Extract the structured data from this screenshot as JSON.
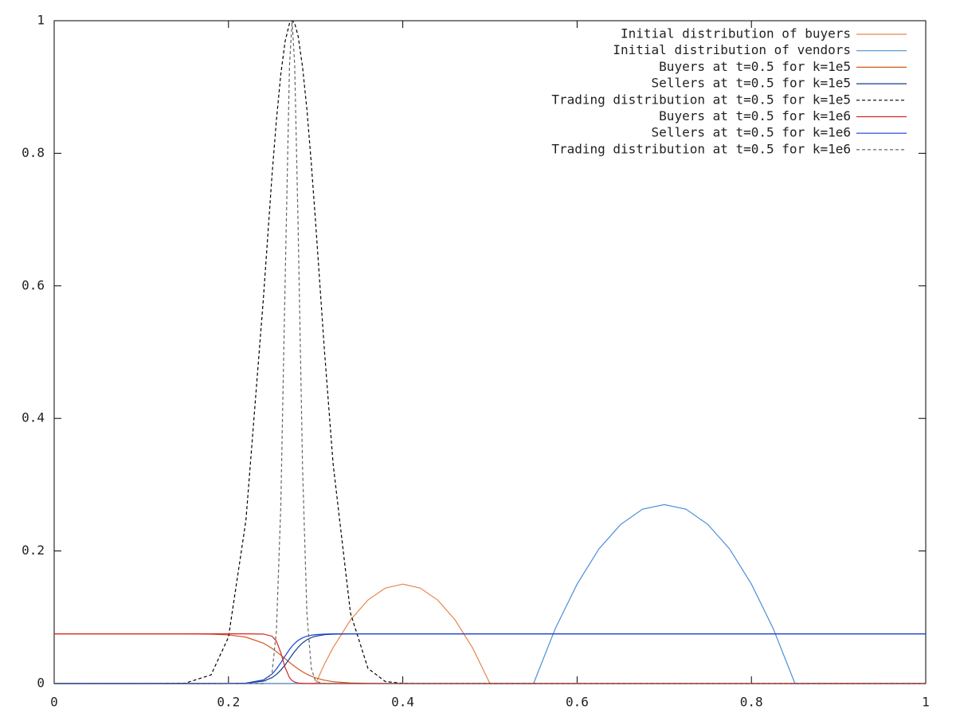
{
  "chart_data": {
    "type": "line",
    "x": [
      0,
      0.1,
      0.15,
      0.18,
      0.2,
      0.22,
      0.24,
      0.25,
      0.255,
      0.26,
      0.265,
      0.27,
      0.273,
      0.276,
      0.28,
      0.285,
      0.29,
      0.295,
      0.3,
      0.31,
      0.32,
      0.34,
      0.36,
      0.38,
      0.4,
      0.42,
      0.44,
      0.46,
      0.48,
      0.5,
      0.55,
      0.575,
      0.6,
      0.625,
      0.65,
      0.675,
      0.7,
      0.725,
      0.75,
      0.775,
      0.8,
      0.825,
      0.85,
      0.9,
      1
    ],
    "series": [
      {
        "name": "Initial distribution of buyers",
        "color": "#e8864c",
        "dashed": false,
        "values": [
          0,
          0,
          0,
          0,
          0,
          0,
          0,
          0,
          0,
          0,
          0,
          0,
          0,
          0,
          0,
          0,
          0,
          0,
          0,
          0.029,
          0.054,
          0.096,
          0.126,
          0.144,
          0.15,
          0.144,
          0.126,
          0.096,
          0.054,
          0,
          0,
          0,
          0,
          0,
          0,
          0,
          0,
          0,
          0,
          0,
          0,
          0,
          0,
          0,
          0
        ]
      },
      {
        "name": "Initial distribution of vendors",
        "color": "#4a8fd8",
        "dashed": false,
        "values": [
          0,
          0,
          0,
          0,
          0,
          0,
          0,
          0,
          0,
          0,
          0,
          0,
          0,
          0,
          0,
          0,
          0,
          0,
          0,
          0,
          0,
          0,
          0,
          0,
          0,
          0,
          0,
          0,
          0,
          0,
          0,
          0.083,
          0.15,
          0.203,
          0.24,
          0.263,
          0.27,
          0.263,
          0.24,
          0.203,
          0.15,
          0.083,
          0,
          0,
          0
        ]
      },
      {
        "name": "Buyers at t=0.5 for k=1e5",
        "color": "#d2581c",
        "dashed": false,
        "values": [
          0.075,
          0.075,
          0.075,
          0.0745,
          0.0734,
          0.07,
          0.061,
          0.053,
          0.048,
          0.043,
          0.0375,
          0.032,
          0.0288,
          0.0258,
          0.022,
          0.0177,
          0.014,
          0.011,
          0.0085,
          0.005,
          0.0028,
          0.0009,
          0.0003,
          0.0001,
          0,
          0,
          0,
          0,
          0,
          0,
          0,
          0,
          0,
          0,
          0,
          0,
          0,
          0,
          0,
          0,
          0,
          0,
          0,
          0,
          0
        ]
      },
      {
        "name": "Sellers at t=0.5 for k=1e5",
        "color": "#0f3f8c",
        "dashed": false,
        "values": [
          0,
          0,
          0,
          0,
          0.0001,
          0.0005,
          0.0036,
          0.0089,
          0.0137,
          0.0202,
          0.0283,
          0.0375,
          0.0431,
          0.0484,
          0.0548,
          0.0613,
          0.0661,
          0.0693,
          0.0714,
          0.0737,
          0.0745,
          0.075,
          0.075,
          0.075,
          0.075,
          0.075,
          0.075,
          0.075,
          0.075,
          0.075,
          0.075,
          0.075,
          0.075,
          0.075,
          0.075,
          0.075,
          0.075,
          0.075,
          0.075,
          0.075,
          0.075,
          0.075,
          0.075,
          0.075,
          0.075
        ]
      },
      {
        "name": "Trading distribution at t=0.5 for k=1e5",
        "color": "#000000",
        "dashed": true,
        "values": [
          0,
          0,
          0.0005,
          0.013,
          0.07,
          0.246,
          0.58,
          0.768,
          0.85,
          0.919,
          0.969,
          0.996,
          1,
          0.996,
          0.976,
          0.93,
          0.866,
          0.785,
          0.695,
          0.504,
          0.332,
          0.106,
          0.023,
          0.003,
          0.0003,
          0,
          0,
          0,
          0,
          0,
          0,
          0,
          0,
          0,
          0,
          0,
          0,
          0,
          0,
          0,
          0,
          0,
          0,
          0,
          0
        ]
      },
      {
        "name": "Buyers at t=0.5 for k=1e6",
        "color": "#d42424",
        "dashed": false,
        "values": [
          0.075,
          0.075,
          0.075,
          0.075,
          0.075,
          0.075,
          0.0747,
          0.0714,
          0.0639,
          0.0467,
          0.024,
          0.0089,
          0.0045,
          0.0022,
          0.0008,
          0.0002,
          0.0001,
          0,
          0,
          0,
          0,
          0,
          0,
          0,
          0,
          0,
          0,
          0,
          0,
          0,
          0,
          0,
          0,
          0,
          0,
          0,
          0,
          0,
          0,
          0,
          0,
          0,
          0,
          0,
          0
        ]
      },
      {
        "name": "Sellers at t=0.5 for k=1e6",
        "color": "#1c3fd4",
        "dashed": false,
        "values": [
          0,
          0,
          0,
          0,
          0.0001,
          0.0006,
          0.0054,
          0.0143,
          0.0219,
          0.0313,
          0.0417,
          0.0514,
          0.0564,
          0.0607,
          0.0652,
          0.069,
          0.0714,
          0.0729,
          0.0738,
          0.0746,
          0.075,
          0.075,
          0.075,
          0.075,
          0.075,
          0.075,
          0.075,
          0.075,
          0.075,
          0.075,
          0.075,
          0.075,
          0.075,
          0.075,
          0.075,
          0.075,
          0.075,
          0.075,
          0.075,
          0.075,
          0.075,
          0.075,
          0.075,
          0.075,
          0.075
        ]
      },
      {
        "name": "Trading distribution at t=0.5 for k=1e6",
        "color": "#666666",
        "dashed": true,
        "values": [
          0,
          0,
          0,
          0,
          0,
          0,
          0,
          0.016,
          0.08,
          0.267,
          0.607,
          0.932,
          1,
          0.932,
          0.682,
          0.325,
          0.105,
          0.023,
          0.003,
          0,
          0,
          0,
          0,
          0,
          0,
          0,
          0,
          0,
          0,
          0,
          0,
          0,
          0,
          0,
          0,
          0,
          0,
          0,
          0,
          0,
          0,
          0,
          0,
          0,
          0
        ]
      }
    ],
    "xlim": [
      0,
      1
    ],
    "xticks": [
      0,
      0.2,
      0.4,
      0.6,
      0.8,
      1
    ],
    "ylim": [
      0,
      1
    ],
    "yticks": [
      0,
      0.2,
      0.4,
      0.6,
      0.8,
      1
    ],
    "grid": false,
    "legend": "upper right"
  }
}
